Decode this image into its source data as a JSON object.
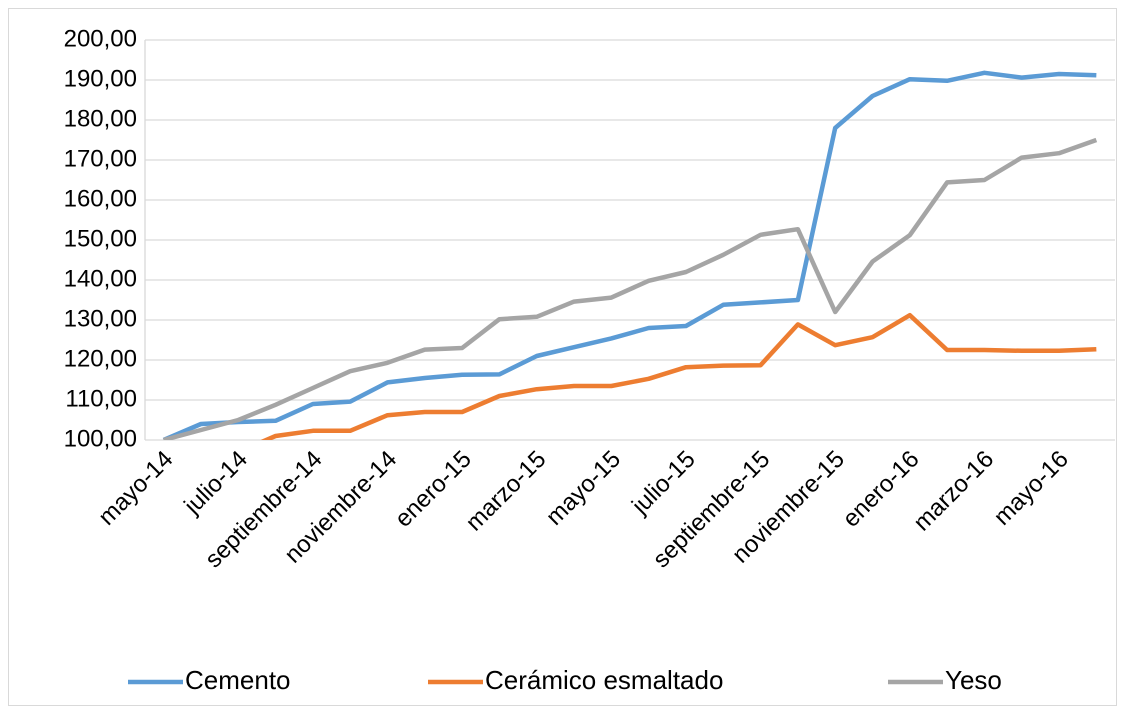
{
  "chart_data": {
    "type": "line",
    "categories": [
      "mayo-14",
      null,
      "julio-14",
      null,
      "septiembre-14",
      null,
      "noviembre-14",
      null,
      "enero-15",
      null,
      "marzo-15",
      null,
      "mayo-15",
      null,
      "julio-15",
      null,
      "septiembre-15",
      null,
      "noviembre-15",
      null,
      "enero-16",
      null,
      "marzo-16",
      null,
      "mayo-16",
      null
    ],
    "series": [
      {
        "name": "Cemento",
        "color": "#5b9bd5",
        "values": [
          100,
          104,
          104.5,
          104.8,
          109,
          109.6,
          114.4,
          115.5,
          116.3,
          116.4,
          121,
          123.2,
          125.4,
          128,
          128.5,
          133.8,
          134.4,
          135,
          178,
          186,
          190.2,
          189.8,
          191.8,
          190.6,
          191.5,
          191.2
        ]
      },
      {
        "name": "Cerámico esmaltado",
        "color": "#ed7d31",
        "values": [
          100,
          96,
          97,
          101,
          102.3,
          102.3,
          106.2,
          107,
          107,
          111,
          112.7,
          113.5,
          113.5,
          115.3,
          118.2,
          118.6,
          118.7,
          128.9,
          123.7,
          125.7,
          131.2,
          122.5,
          122.5,
          122.3,
          122.3,
          122.7
        ]
      },
      {
        "name": "Yeso",
        "color": "#a5a5a5",
        "values": [
          100,
          102.5,
          105,
          108.8,
          113,
          117.2,
          119.3,
          122.6,
          123,
          130.2,
          130.8,
          134.6,
          135.6,
          139.8,
          142,
          146.3,
          151.3,
          152.7,
          132,
          144.6,
          151.2,
          164.4,
          165,
          170.6,
          171.7,
          175
        ]
      }
    ],
    "ylim": [
      100,
      200
    ],
    "yticks": [
      {
        "value": 100,
        "label": "100,00"
      },
      {
        "value": 110,
        "label": "110,00"
      },
      {
        "value": 120,
        "label": "120,00"
      },
      {
        "value": 130,
        "label": "130,00"
      },
      {
        "value": 140,
        "label": "140,00"
      },
      {
        "value": 150,
        "label": "150,00"
      },
      {
        "value": 160,
        "label": "160,00"
      },
      {
        "value": 170,
        "label": "170,00"
      },
      {
        "value": 180,
        "label": "180,00"
      },
      {
        "value": 190,
        "label": "190,00"
      },
      {
        "value": 200,
        "label": "200,00"
      }
    ],
    "grid": true,
    "legend": "bottom"
  }
}
